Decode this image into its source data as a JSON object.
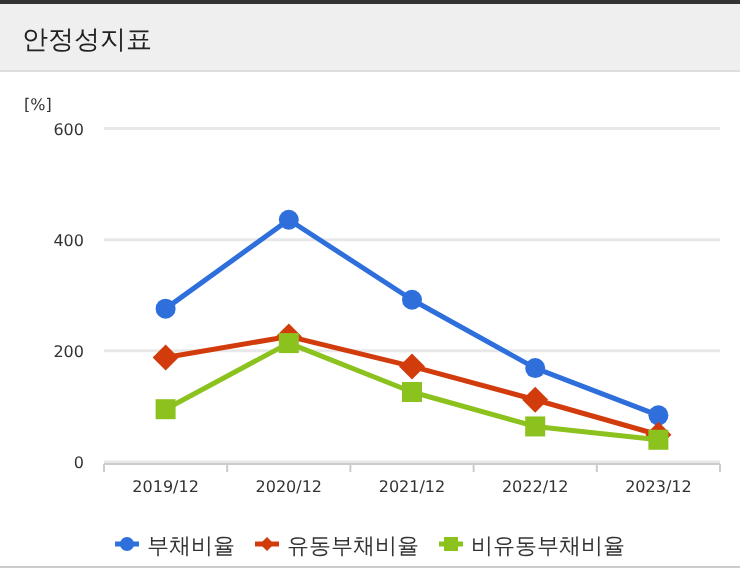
{
  "chart_data": {
    "type": "line",
    "title": "안정성지표",
    "ylabel": "[%]",
    "categories": [
      "2019/12",
      "2020/12",
      "2021/12",
      "2022/12",
      "2023/12"
    ],
    "series": [
      {
        "name": "부채비율",
        "color": "#2e6fdc",
        "marker": "circle",
        "values": [
          276,
          436,
          292,
          169,
          84
        ]
      },
      {
        "name": "유동부채비율",
        "color": "#d23c0c",
        "marker": "diamond",
        "values": [
          188,
          226,
          172,
          112,
          49
        ]
      },
      {
        "name": "비유동부채비율",
        "color": "#8cc21e",
        "marker": "square",
        "values": [
          95,
          214,
          126,
          64,
          40
        ]
      }
    ],
    "ylim": [
      0,
      600
    ],
    "yticks": [
      0,
      200,
      400,
      600
    ],
    "grid": "y",
    "legend": "bottom",
    "line_style": "solid"
  }
}
